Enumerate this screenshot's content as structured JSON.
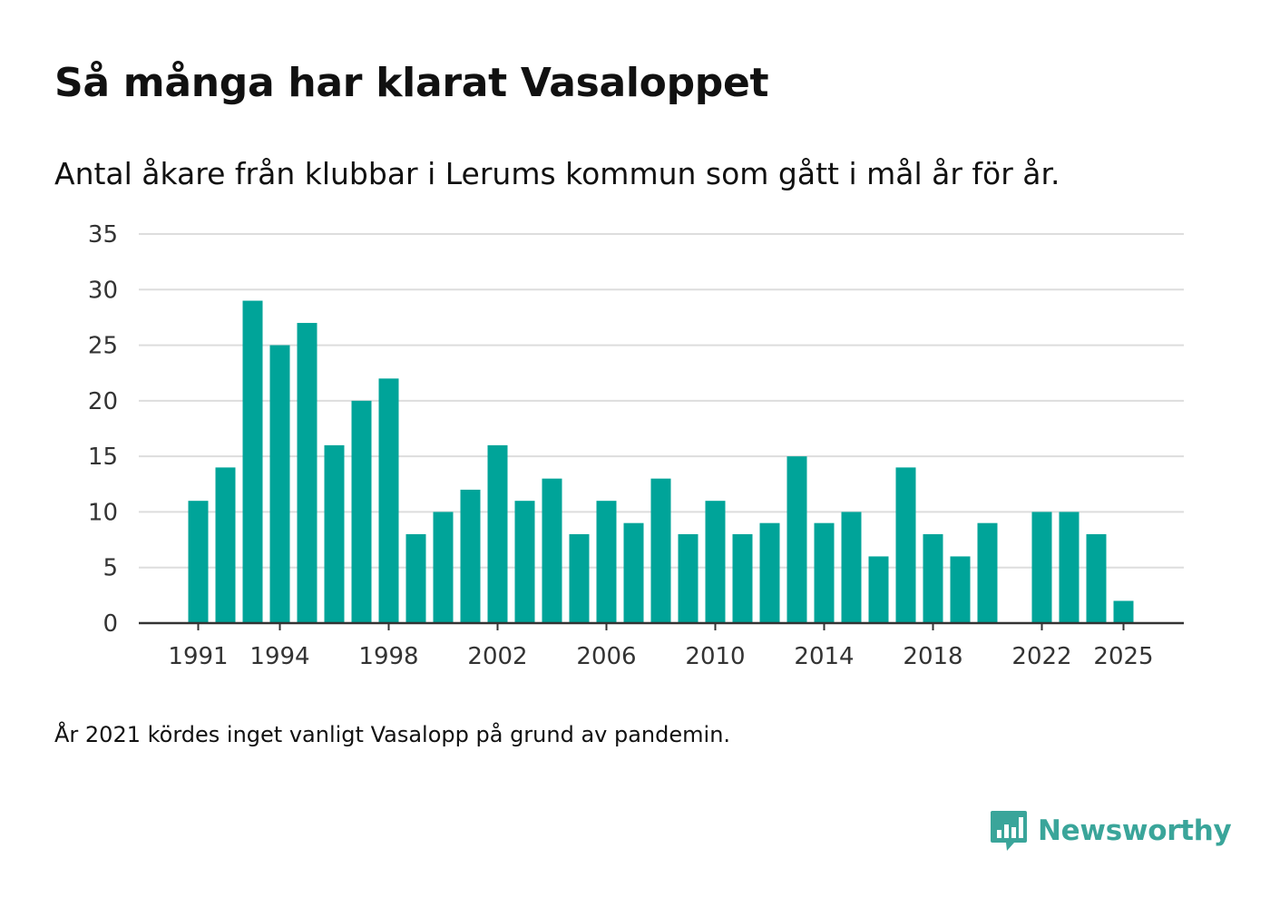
{
  "header": {
    "title": "Så många har klarat Vasaloppet",
    "subtitle": "Antal åkare från klubbar i Lerums kommun som gått i mål år för år."
  },
  "footer": {
    "note": "År 2021 kördes inget vanligt Vasalopp på grund av pandemin.",
    "brand": "Newsworthy"
  },
  "colors": {
    "bar": "#00a499",
    "grid": "#dddddd",
    "axis": "#333333",
    "brand": "#3aa59a"
  },
  "chart_data": {
    "type": "bar",
    "title": "Så många har klarat Vasaloppet",
    "xlabel": "",
    "ylabel": "",
    "ylim": [
      0,
      35
    ],
    "yticks": [
      0,
      5,
      10,
      15,
      20,
      25,
      30,
      35
    ],
    "xtick_years": [
      1991,
      1994,
      1998,
      2002,
      2006,
      2010,
      2014,
      2018,
      2022,
      2025
    ],
    "xtick_labels": [
      "1991",
      "1994",
      "1998",
      "2002",
      "2006",
      "2010",
      "2014",
      "2018",
      "2022",
      "2025"
    ],
    "ytick_labels": [
      "0",
      "5",
      "10",
      "15",
      "20",
      "25",
      "30",
      "35"
    ],
    "grid": true,
    "categories": [
      1991,
      1992,
      1993,
      1994,
      1995,
      1996,
      1997,
      1998,
      1999,
      2000,
      2001,
      2002,
      2003,
      2004,
      2005,
      2006,
      2007,
      2008,
      2009,
      2010,
      2011,
      2012,
      2013,
      2014,
      2015,
      2016,
      2017,
      2018,
      2019,
      2020,
      2021,
      2022,
      2023,
      2024,
      2025
    ],
    "values": [
      11,
      14,
      29,
      25,
      27,
      16,
      20,
      22,
      8,
      10,
      12,
      16,
      11,
      13,
      8,
      11,
      9,
      13,
      8,
      11,
      8,
      9,
      15,
      9,
      10,
      6,
      14,
      8,
      6,
      9,
      null,
      10,
      10,
      8,
      2
    ]
  }
}
